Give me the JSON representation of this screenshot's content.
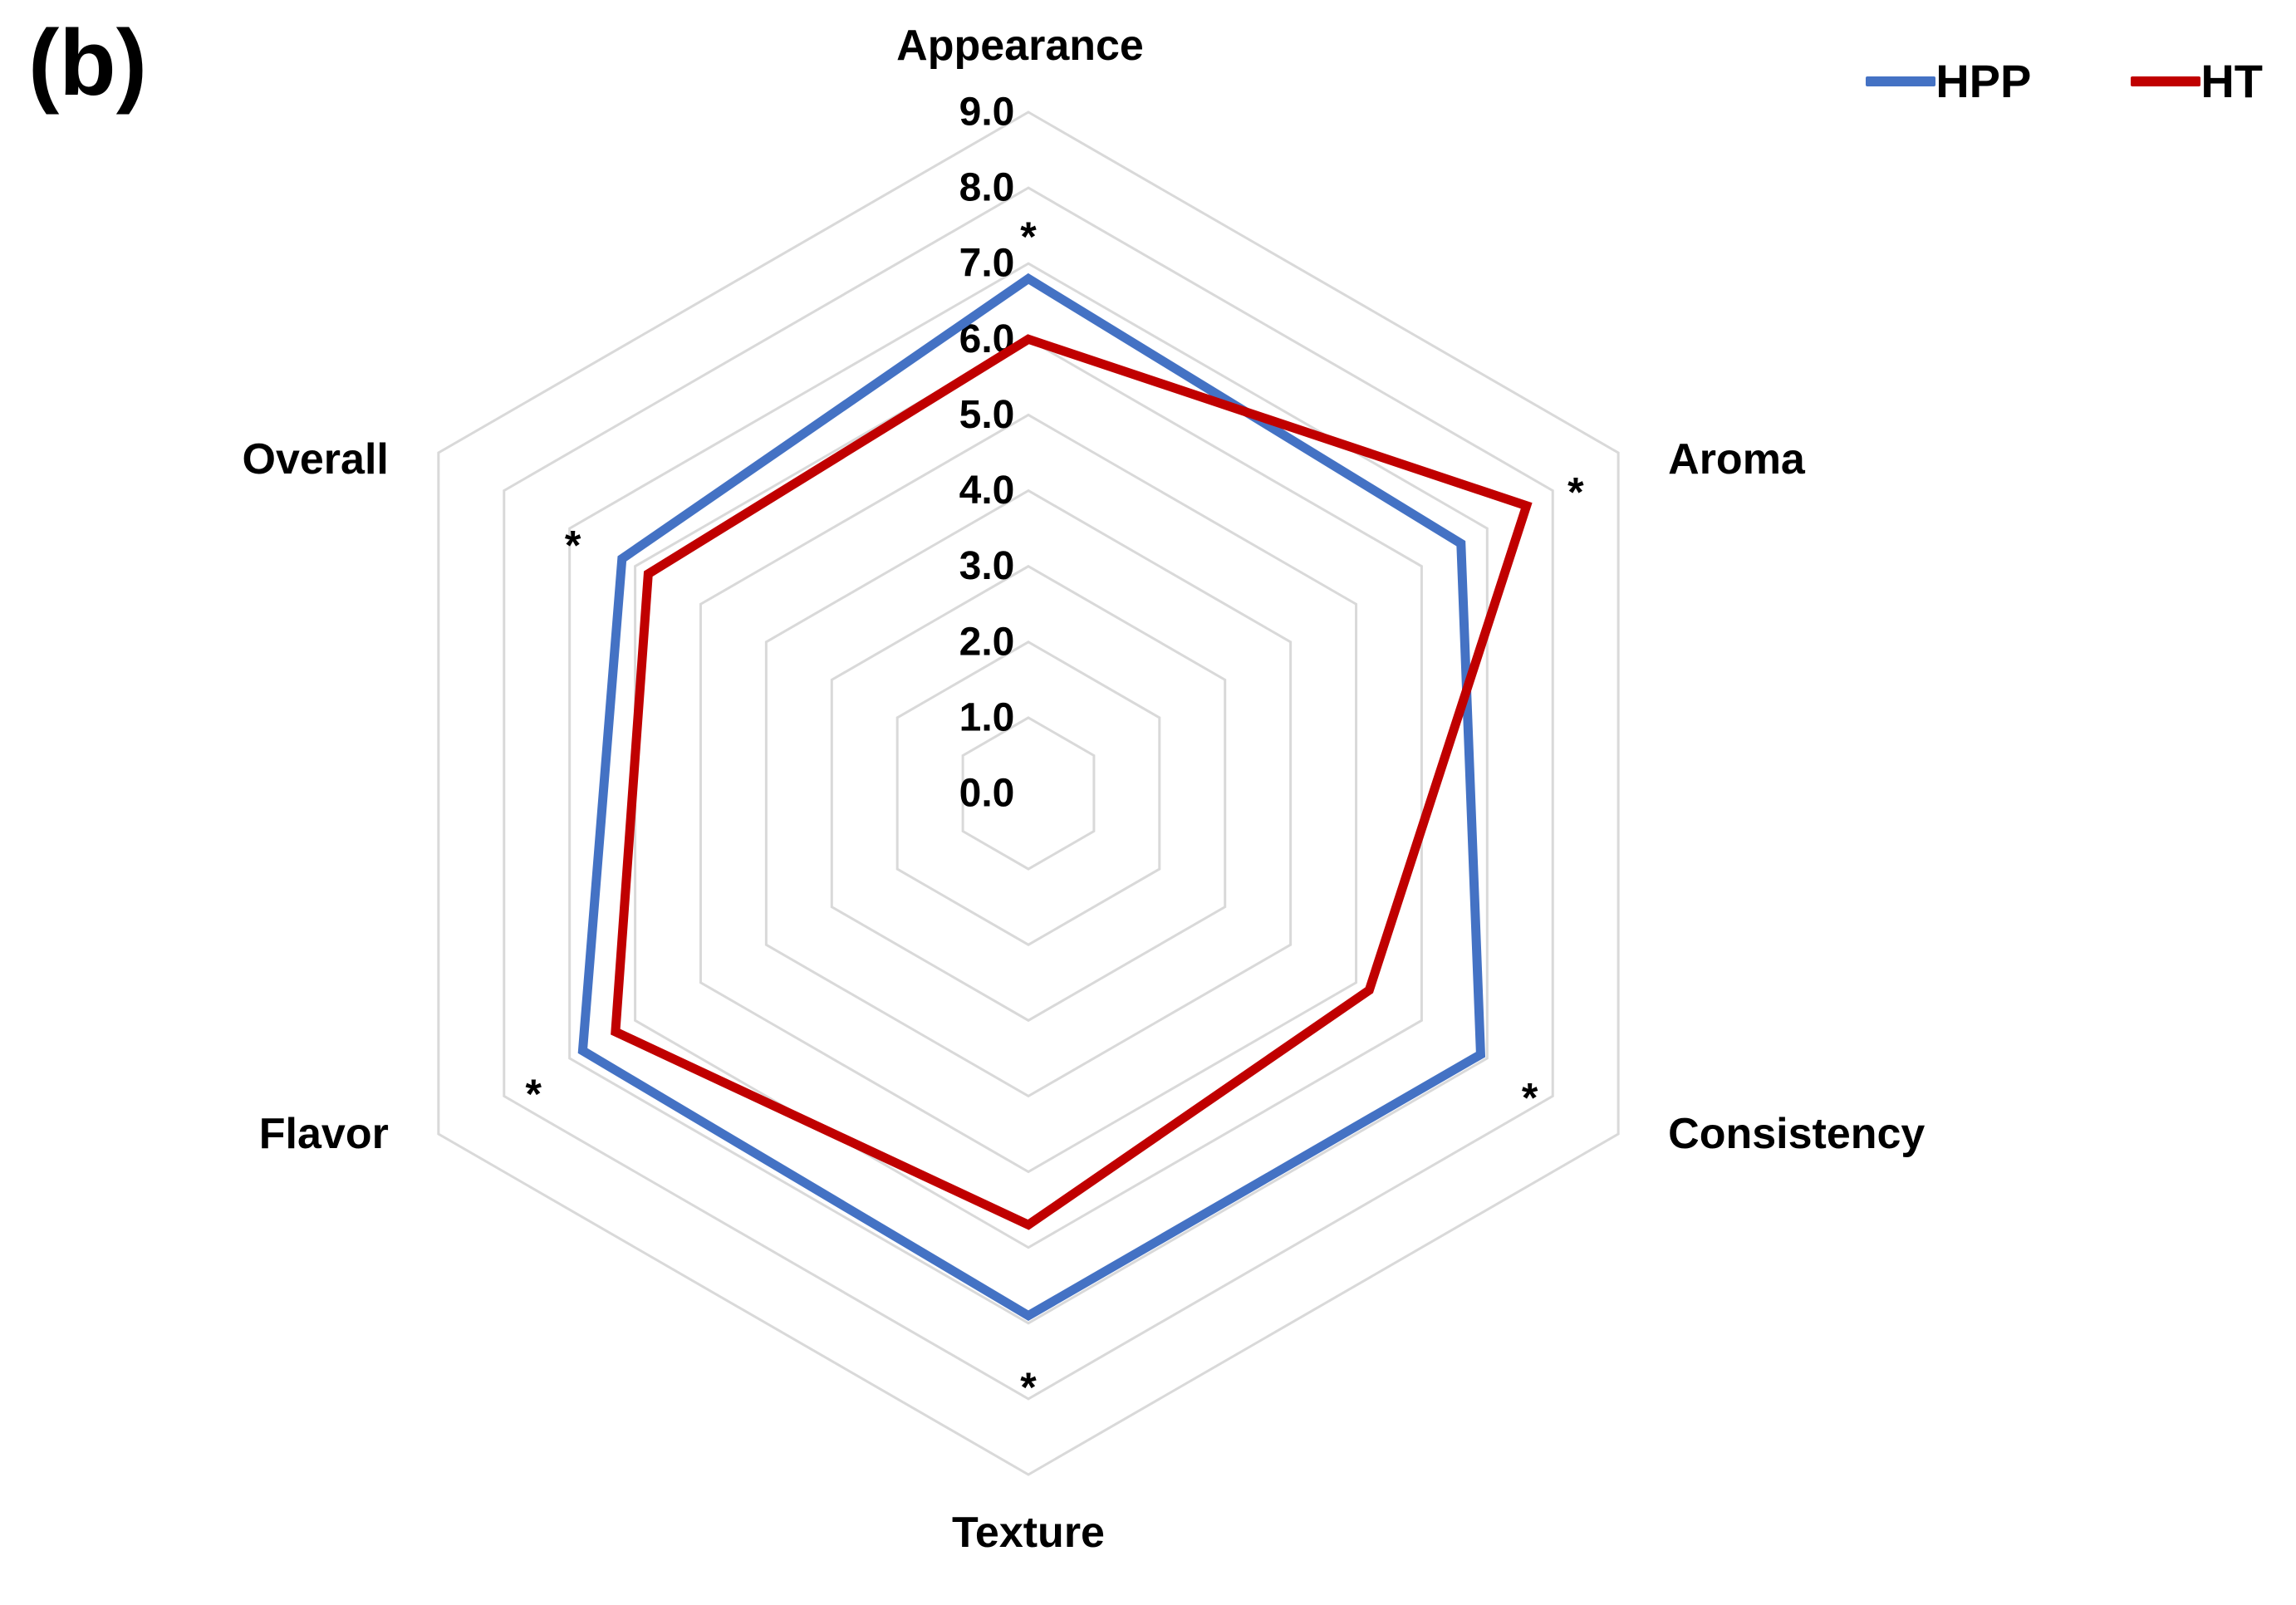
{
  "panel_label": "(b)",
  "chart_data": {
    "type": "radar",
    "axes": [
      "Appearance",
      "Aroma",
      "Consistency",
      "Texture",
      "Flavor",
      "Overall"
    ],
    "rlim": [
      0,
      9
    ],
    "ticks": [
      "0.0",
      "1.0",
      "2.0",
      "3.0",
      "4.0",
      "5.0",
      "6.0",
      "7.0",
      "8.0",
      "9.0"
    ],
    "grid": true,
    "legend_position": "top-right",
    "series": [
      {
        "name": "HPP",
        "color": "#4472C4",
        "values": [
          6.8,
          6.6,
          6.9,
          6.9,
          6.8,
          6.2
        ]
      },
      {
        "name": "HT",
        "color": "#C00000",
        "values": [
          6.0,
          7.6,
          5.2,
          5.7,
          6.3,
          5.8
        ]
      }
    ],
    "annotations": [
      {
        "axis": "Appearance",
        "text": "*"
      },
      {
        "axis": "Aroma",
        "text": "*"
      },
      {
        "axis": "Consistency",
        "text": "*"
      },
      {
        "axis": "Texture",
        "text": "*"
      },
      {
        "axis": "Flavor",
        "text": "*"
      },
      {
        "axis": "Overall",
        "text": "*"
      }
    ]
  }
}
